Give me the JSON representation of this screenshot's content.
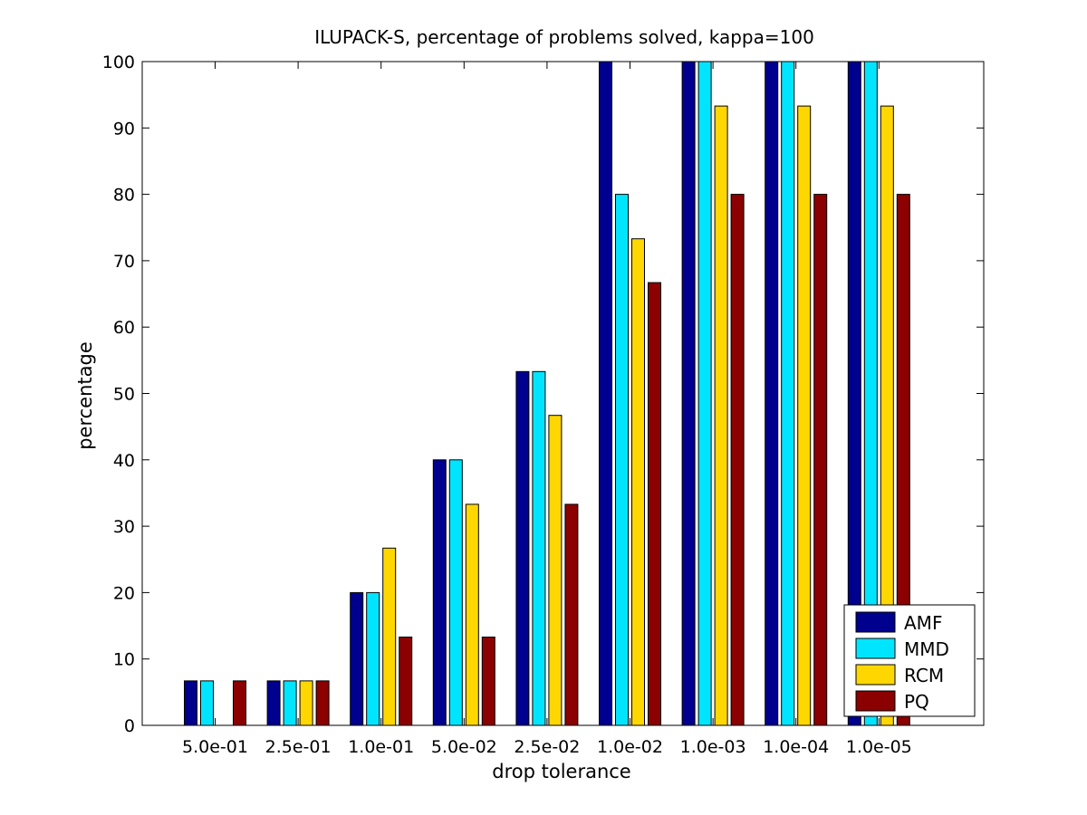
{
  "chart_data": {
    "type": "bar",
    "title": "ILUPACK-S, percentage of problems solved, kappa=100",
    "xlabel": "drop tolerance",
    "ylabel": "percentage",
    "categories": [
      "5.0e-01",
      "2.5e-01",
      "1.0e-01",
      "5.0e-02",
      "2.5e-02",
      "1.0e-02",
      "1.0e-03",
      "1.0e-04",
      "1.0e-05"
    ],
    "ylim": [
      0,
      100
    ],
    "yticks": [
      "0",
      "10",
      "20",
      "30",
      "40",
      "50",
      "60",
      "70",
      "80",
      "90",
      "100"
    ],
    "grid": false,
    "legend_position": "bottom-right",
    "series": [
      {
        "name": "AMF",
        "color": "#00008f",
        "values": [
          6.7,
          6.7,
          20,
          40,
          53.3,
          100,
          100,
          100,
          100
        ]
      },
      {
        "name": "MMD",
        "color": "#00e5ff",
        "values": [
          6.7,
          6.7,
          20,
          40,
          53.3,
          80,
          100,
          100,
          100
        ]
      },
      {
        "name": "RCM",
        "color": "#ffd700",
        "values": [
          0,
          6.7,
          26.7,
          33.3,
          46.7,
          73.3,
          93.3,
          93.3,
          93.3
        ]
      },
      {
        "name": "PQ",
        "color": "#8b0000",
        "values": [
          6.7,
          6.7,
          13.3,
          13.3,
          33.3,
          66.7,
          80,
          80,
          80
        ]
      }
    ]
  }
}
